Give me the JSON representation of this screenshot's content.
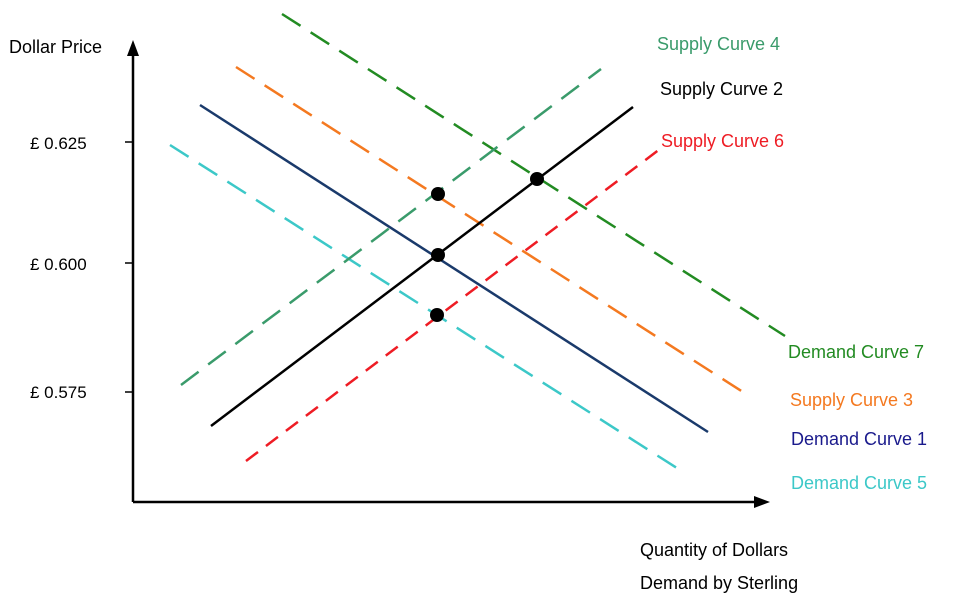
{
  "axes": {
    "y_label": "Dollar Price",
    "x_label_line1": "Quantity of Dollars",
    "x_label_line2": "Demand by Sterling",
    "y_ticks": [
      "£ 0.625",
      "£ 0.600",
      "£ 0.575"
    ]
  },
  "curves": {
    "supply_4": {
      "label": "Supply Curve 4",
      "color": "#3a9b6b",
      "style": "dashed"
    },
    "supply_2": {
      "label": "Supply Curve 2",
      "color": "#000000",
      "style": "solid"
    },
    "supply_6": {
      "label": "Supply Curve 6",
      "color": "#ee1c24",
      "style": "dashed"
    },
    "demand_7": {
      "label": "Demand Curve 7",
      "color": "#228b22",
      "style": "dashed"
    },
    "supply_3": {
      "label": "Supply Curve 3",
      "color": "#f47920",
      "style": "dashed"
    },
    "demand_1": {
      "label": "Demand Curve 1",
      "color": "#1a3a6b",
      "style": "solid"
    },
    "demand_5": {
      "label": "Demand Curve 5",
      "color": "#3cc8c8",
      "style": "dashed"
    }
  },
  "label_colors": {
    "supply_4": "#3a9b6b",
    "supply_2": "#000000",
    "supply_6": "#ee1c24",
    "demand_7": "#228b22",
    "supply_3": "#f47920",
    "demand_1": "#1a1a8c",
    "demand_5": "#3cc8c8"
  },
  "equilibrium_points": 4
}
